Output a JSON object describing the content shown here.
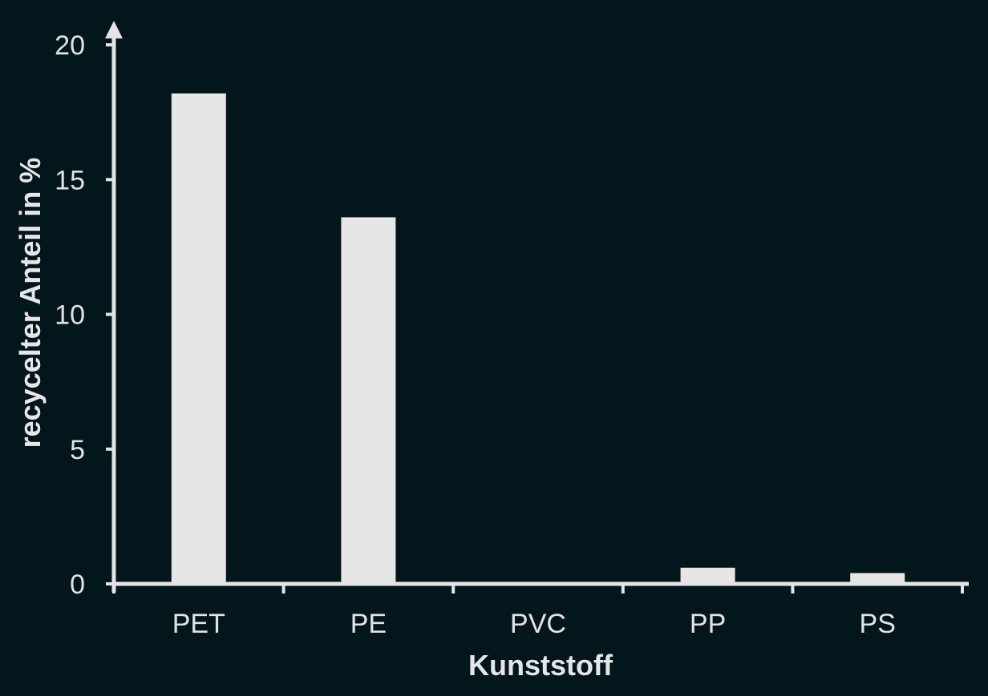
{
  "chart_data": {
    "type": "bar",
    "categories": [
      "PET",
      "PE",
      "PVC",
      "PP",
      "PS"
    ],
    "values": [
      18.2,
      13.6,
      0.0,
      0.6,
      0.4
    ],
    "title": "",
    "xlabel": "Kunststoff",
    "ylabel": "recycelter Anteil in %",
    "ylim": [
      0,
      20
    ],
    "yticks": [
      0,
      5,
      10,
      15,
      20
    ],
    "grid": false,
    "legend": "none",
    "colors": {
      "background": "#03161c",
      "bar": "#e6e6e6",
      "axis": "#e4e4e4",
      "text": "#e2e2e2"
    }
  }
}
